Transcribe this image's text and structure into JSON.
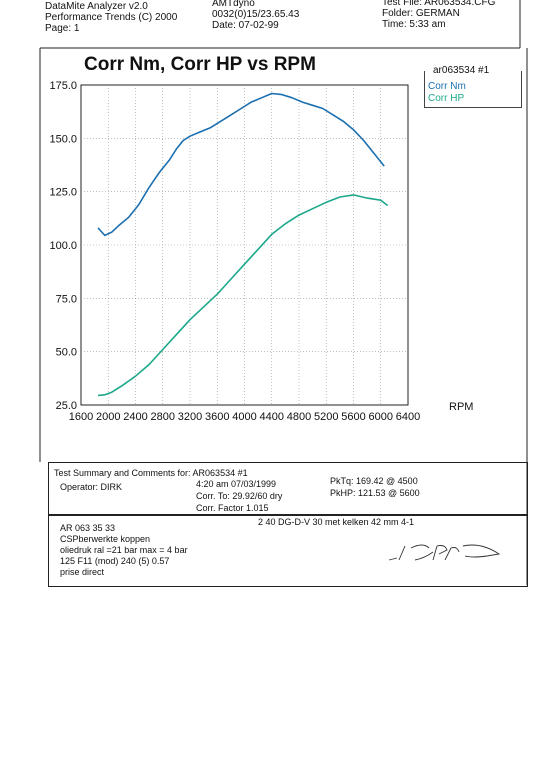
{
  "header": {
    "left": [
      "DataMite Analyzer v2.0",
      "Performance Trends (C) 2000",
      "Page: 1"
    ],
    "middle": [
      "AMTdyno",
      "0032(0)15/23.65.43",
      "Date: 07-02-99"
    ],
    "right": [
      "Test File: AR063534.CFG",
      "Folder: GERMAN",
      "Time: 5:33 am"
    ]
  },
  "chart_data": {
    "type": "line",
    "title": "Corr Nm, Corr HP vs RPM",
    "xlabel": "RPM",
    "ylabel": "",
    "xlim": [
      1600,
      6400
    ],
    "ylim": [
      25,
      175
    ],
    "x_ticks": [
      "1600",
      "2000",
      "2400",
      "2800",
      "3200",
      "3600",
      "4000",
      "4400",
      "4800",
      "5200",
      "5600",
      "6000",
      "6400"
    ],
    "y_ticks": [
      "25.0",
      "50.0",
      "75.0",
      "100.0",
      "125.0",
      "150.0",
      "175.0"
    ],
    "grid": true,
    "legend_title": "ar063534  #1",
    "legend_position": "top-right",
    "series": [
      {
        "name": "Corr Nm",
        "color": "#1a6fb0",
        "x": [
          1850,
          1950,
          2050,
          2150,
          2300,
          2450,
          2600,
          2750,
          2900,
          3000,
          3100,
          3200,
          3350,
          3500,
          3650,
          3800,
          3950,
          4100,
          4250,
          4400,
          4550,
          4700,
          4850,
          5000,
          5150,
          5300,
          5450,
          5600,
          5750,
          5900,
          6050
        ],
        "values": [
          108,
          104.5,
          106,
          109,
          113,
          119,
          127,
          134,
          140,
          145,
          149,
          151,
          153,
          155,
          158,
          161,
          164,
          167,
          169,
          171,
          170.5,
          169,
          167,
          165.5,
          164,
          161,
          158,
          154,
          149,
          143,
          137
        ]
      },
      {
        "name": "Corr HP",
        "color": "#1ba88a",
        "x": [
          1850,
          1950,
          2050,
          2200,
          2400,
          2600,
          2800,
          3000,
          3200,
          3400,
          3600,
          3800,
          4000,
          4200,
          4400,
          4600,
          4800,
          5000,
          5200,
          5400,
          5600,
          5800,
          6000,
          6100
        ],
        "values": [
          29.5,
          29.8,
          31,
          34,
          38.5,
          44,
          51,
          58,
          65,
          71,
          77,
          84,
          91,
          98,
          105,
          110,
          114,
          117,
          120,
          122.5,
          123.5,
          122,
          121,
          118.5
        ]
      }
    ]
  },
  "summary": {
    "heading": "Test Summary and Comments for:  AR063534  #1",
    "operator": "Operator: DIRK",
    "time_date": "4:20 am 07/03/1999",
    "corr_to": "Corr. To: 29.92/60 dry",
    "corr_factor": "Corr. Factor 1.015",
    "pktq": "PkTq: 169.42 @  4500",
    "pkhp": "PkHP: 121.53 @  5600"
  },
  "comments": {
    "lines": [
      "AR 063 35 33",
      "CSPberwerkte koppen",
      "oliedruk ral =21 bar  max = 4 bar",
      "125 F11 (mod) 240 (5)  0.57",
      "prise direct"
    ],
    "right_note": "2 40 DG-D-V 30 met kelken 42 mm  4-1"
  }
}
